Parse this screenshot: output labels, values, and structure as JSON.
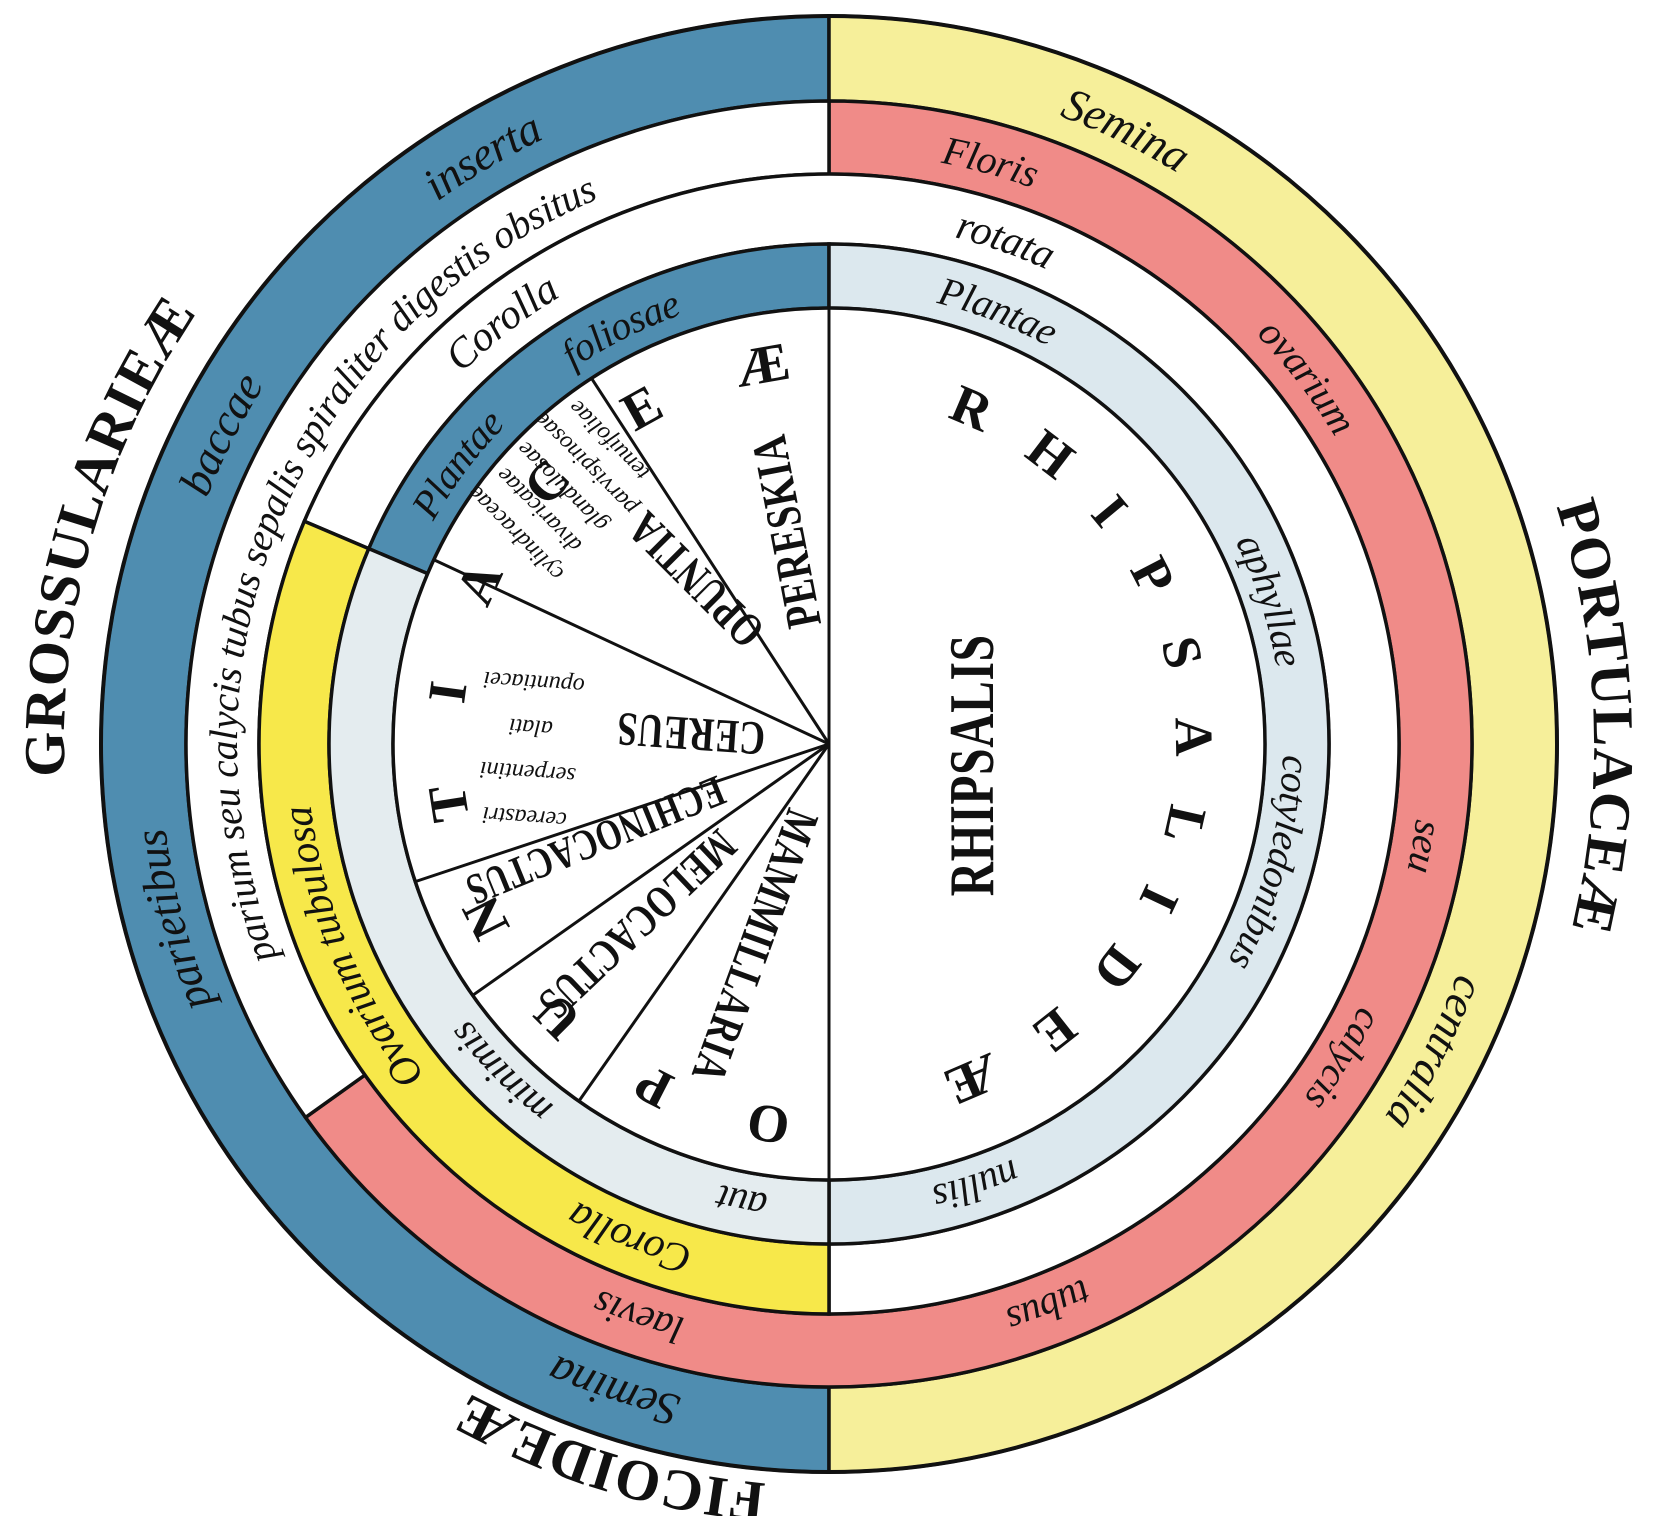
{
  "groups": [
    "GROSSULARIEÆ",
    "PORTULACEÆ",
    "FICOIDEÆ"
  ],
  "ring_1": [
    "inserta",
    "baccae",
    "parietibus",
    "Semina",
    "Semina",
    "centralia"
  ],
  "ring_2": [
    "parium seu calycis tubus sepalis spiraliter digestis obsitus",
    "Floris",
    "ovarium",
    "seu",
    "calycis",
    "tubus",
    "laevis"
  ],
  "ring_3": [
    "Corolla",
    "rotata",
    "Ovarium tubulosa",
    "Corolla"
  ],
  "ring_4": [
    "Plantae",
    "foliosae",
    "Plantae",
    "aphyllae",
    "cotyledonibus",
    "nullis",
    "aut",
    "minimis"
  ],
  "tribes": [
    "RHIPSALIDEÆ",
    "OPUNTIACEÆ"
  ],
  "genera": [
    {
      "name": "RHIPSALIS"
    },
    {
      "name": "PERESKIA"
    },
    {
      "name": "OPUNTIA",
      "forms": [
        "cylindraceae",
        "divaricatae",
        "glandulosae",
        "parvispinosae",
        "tenuifoliae"
      ]
    },
    {
      "name": "CEREUS",
      "forms": [
        "cereastri",
        "serpentini",
        "alati",
        "opuntiacei"
      ]
    },
    {
      "name": "ECHINOCACTUS"
    },
    {
      "name": "MELOCACTUS"
    },
    {
      "name": "MAMMILLARIA"
    }
  ]
}
